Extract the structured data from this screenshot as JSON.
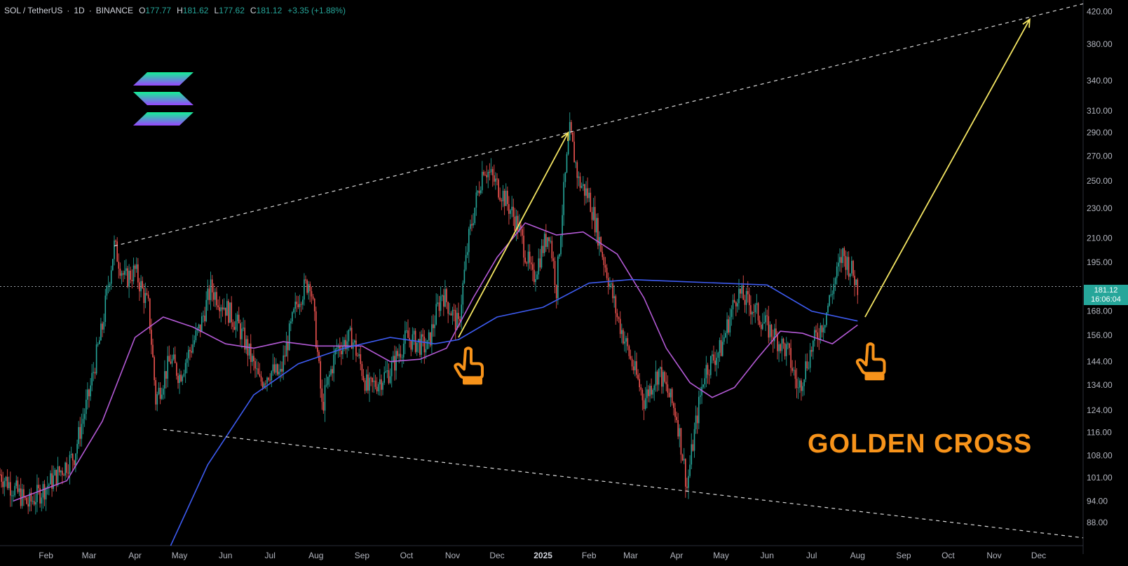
{
  "header": {
    "symbol": "SOL / TetherUS",
    "interval": "1D",
    "exchange": "BINANCE",
    "open_label": "O",
    "open": "177.77",
    "high_label": "H",
    "high": "181.62",
    "low_label": "L",
    "low": "177.62",
    "close_label": "C",
    "close": "181.12",
    "change": "+3.35 (+1.88%)"
  },
  "price_badge": {
    "price": "181.12",
    "countdown": "16:06:04"
  },
  "annotation": "GOLDEN CROSS",
  "colors": {
    "background": "#000000",
    "candle_up": "#26a69a",
    "candle_down": "#ef5350",
    "ma_short": "#b45ad6",
    "ma_long": "#3d5bf0",
    "arrow": "#f5e663",
    "annotation": "#f7931a",
    "channel": "#d9d9d9"
  },
  "chart_data": {
    "type": "line",
    "title": "",
    "y_scale": "log",
    "ylim": [
      82,
      435
    ],
    "y_ticks": [
      88,
      94,
      101,
      108,
      116,
      124,
      134,
      144,
      156,
      168,
      181.12,
      195,
      210,
      230,
      250,
      270,
      290,
      310,
      340,
      380,
      420
    ],
    "y_tick_labels": [
      "88.00",
      "94.00",
      "101.00",
      "108.00",
      "116.00",
      "124.00",
      "134.00",
      "144.00",
      "156.00",
      "168.00",
      "181.12",
      "195.00",
      "210.00",
      "230.00",
      "250.00",
      "270.00",
      "290.00",
      "310.00",
      "340.00",
      "380.00",
      "420.00"
    ],
    "x_ticks": [
      "Feb",
      "Mar",
      "Apr",
      "May",
      "Jun",
      "Jul",
      "Aug",
      "Sep",
      "Oct",
      "Nov",
      "Dec",
      "2025",
      "Feb",
      "Mar",
      "Apr",
      "May",
      "Jun",
      "Jul",
      "Aug",
      "Sep",
      "Oct",
      "Nov",
      "Dec"
    ],
    "last_price": 181.12,
    "price_path": [
      [
        "2024-01-01",
        102
      ],
      [
        "2024-01-20",
        93
      ],
      [
        "2024-02-05",
        100
      ],
      [
        "2024-02-20",
        108
      ],
      [
        "2024-03-01",
        130
      ],
      [
        "2024-03-10",
        160
      ],
      [
        "2024-03-18",
        205
      ],
      [
        "2024-03-25",
        185
      ],
      [
        "2024-04-01",
        190
      ],
      [
        "2024-04-10",
        170
      ],
      [
        "2024-04-15",
        128
      ],
      [
        "2024-04-25",
        145
      ],
      [
        "2024-05-01",
        138
      ],
      [
        "2024-05-15",
        160
      ],
      [
        "2024-05-22",
        180
      ],
      [
        "2024-06-01",
        170
      ],
      [
        "2024-06-10",
        160
      ],
      [
        "2024-06-24",
        135
      ],
      [
        "2024-07-01",
        140
      ],
      [
        "2024-07-08",
        138
      ],
      [
        "2024-07-20",
        175
      ],
      [
        "2024-07-28",
        185
      ],
      [
        "2024-08-05",
        125
      ],
      [
        "2024-08-15",
        150
      ],
      [
        "2024-08-25",
        155
      ],
      [
        "2024-09-05",
        132
      ],
      [
        "2024-09-20",
        140
      ],
      [
        "2024-10-01",
        155
      ],
      [
        "2024-10-15",
        150
      ],
      [
        "2024-10-25",
        178
      ],
      [
        "2024-11-05",
        160
      ],
      [
        "2024-11-12",
        210
      ],
      [
        "2024-11-22",
        262
      ],
      [
        "2024-12-05",
        240
      ],
      [
        "2024-12-15",
        218
      ],
      [
        "2024-12-25",
        185
      ],
      [
        "2025-01-05",
        215
      ],
      [
        "2025-01-10",
        180
      ],
      [
        "2025-01-19",
        290
      ],
      [
        "2025-01-25",
        250
      ],
      [
        "2025-02-01",
        238
      ],
      [
        "2025-02-10",
        200
      ],
      [
        "2025-02-20",
        165
      ],
      [
        "2025-03-01",
        145
      ],
      [
        "2025-03-10",
        128
      ],
      [
        "2025-03-20",
        140
      ],
      [
        "2025-04-01",
        122
      ],
      [
        "2025-04-08",
        98
      ],
      [
        "2025-04-20",
        140
      ],
      [
        "2025-05-01",
        150
      ],
      [
        "2025-05-12",
        178
      ],
      [
        "2025-05-22",
        170
      ],
      [
        "2025-06-01",
        160
      ],
      [
        "2025-06-15",
        148
      ],
      [
        "2025-06-22",
        132
      ],
      [
        "2025-07-01",
        150
      ],
      [
        "2025-07-10",
        165
      ],
      [
        "2025-07-22",
        200
      ],
      [
        "2025-07-28",
        190
      ],
      [
        "2025-08-01",
        181.12
      ]
    ],
    "ma_short_path": [
      [
        "2024-01-10",
        94
      ],
      [
        "2024-02-15",
        100
      ],
      [
        "2024-03-10",
        120
      ],
      [
        "2024-04-01",
        155
      ],
      [
        "2024-04-20",
        165
      ],
      [
        "2024-05-10",
        160
      ],
      [
        "2024-06-01",
        152
      ],
      [
        "2024-06-20",
        150
      ],
      [
        "2024-07-10",
        153
      ],
      [
        "2024-08-01",
        151
      ],
      [
        "2024-09-01",
        151
      ],
      [
        "2024-09-20",
        144
      ],
      [
        "2024-10-10",
        145
      ],
      [
        "2024-10-28",
        150
      ],
      [
        "2024-11-15",
        175
      ],
      [
        "2024-12-01",
        198
      ],
      [
        "2024-12-20",
        220
      ],
      [
        "2025-01-10",
        212
      ],
      [
        "2025-01-28",
        214
      ],
      [
        "2025-02-20",
        200
      ],
      [
        "2025-03-10",
        175
      ],
      [
        "2025-03-25",
        150
      ],
      [
        "2025-04-10",
        135
      ],
      [
        "2025-04-25",
        129
      ],
      [
        "2025-05-10",
        133
      ],
      [
        "2025-05-25",
        145
      ],
      [
        "2025-06-10",
        158
      ],
      [
        "2025-06-25",
        157
      ],
      [
        "2025-07-15",
        152
      ],
      [
        "2025-08-01",
        161
      ]
    ],
    "ma_long_path": [
      [
        "2024-04-25",
        82
      ],
      [
        "2024-05-20",
        105
      ],
      [
        "2024-06-20",
        130
      ],
      [
        "2024-07-20",
        143
      ],
      [
        "2024-08-20",
        150
      ],
      [
        "2024-09-20",
        155
      ],
      [
        "2024-10-20",
        152
      ],
      [
        "2024-11-05",
        154
      ],
      [
        "2024-12-01",
        165
      ],
      [
        "2025-01-01",
        170
      ],
      [
        "2025-02-01",
        183
      ],
      [
        "2025-03-01",
        185
      ],
      [
        "2025-04-01",
        184
      ],
      [
        "2025-05-01",
        183
      ],
      [
        "2025-06-01",
        182
      ],
      [
        "2025-07-01",
        168
      ],
      [
        "2025-08-01",
        163
      ]
    ],
    "channel_upper": [
      [
        "2024-03-18",
        205
      ],
      [
        "2025-12-31",
        430
      ]
    ],
    "channel_lower": [
      [
        "2024-04-20",
        117
      ],
      [
        "2025-12-31",
        84
      ]
    ],
    "arrows": [
      [
        [
          "2024-11-05",
          155
        ],
        [
          "2025-01-18",
          290
        ]
      ],
      [
        [
          "2025-08-06",
          165
        ],
        [
          "2025-11-25",
          410
        ]
      ]
    ],
    "cross_markers": [
      [
        "2024-11-05",
        150
      ],
      [
        "2025-08-03",
        152
      ]
    ]
  }
}
